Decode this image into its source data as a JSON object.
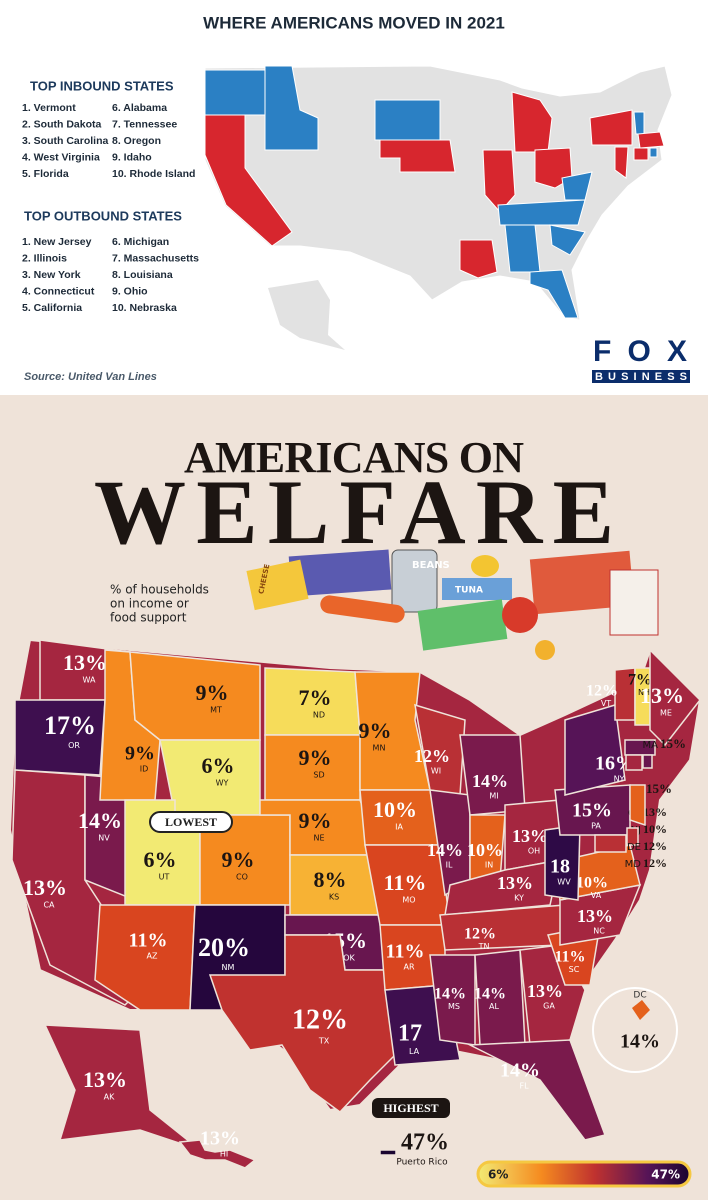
{
  "moves": {
    "title": "WHERE AMERICANS MOVED IN 2021",
    "inbound_title": "TOP INBOUND STATES",
    "inbound": [
      "1. Vermont",
      "2. South Dakota",
      "3. South Carolina",
      "4. West Virginia",
      "5. Florida",
      "6. Alabama",
      "7. Tennessee",
      "8. Oregon",
      "9. Idaho",
      "10. Rhode Island"
    ],
    "outbound_title": "TOP OUTBOUND STATES",
    "outbound": [
      "1. New Jersey",
      "2. Illinois",
      "3. New York",
      "4. Connecticut",
      "5. California",
      "6. Michigan",
      "7. Massachusetts",
      "8. Louisiana",
      "9. Ohio",
      "10. Nebraska"
    ],
    "inbound_color": "#2b80c4",
    "outbound_color": "#d7262e",
    "source": "Source:  United Van Lines",
    "logo_top": "FOX",
    "logo_bottom": "BUSINESS"
  },
  "welfare": {
    "title_top": "AMERICANS ON",
    "title_bottom": "WELFARE",
    "caption": [
      "% of households",
      "on income or",
      "food support"
    ],
    "food_labels": [
      "BEANS",
      "TUNA",
      "CHEESE"
    ],
    "lowest": "LOWEST",
    "highest": "HIGHEST",
    "states": [
      {
        "abbr": "WA",
        "percent": "13%",
        "color": "#a52640"
      },
      {
        "abbr": "OR",
        "percent": "17%",
        "color": "#3e0f4f"
      },
      {
        "abbr": "CA",
        "percent": "13%",
        "color": "#a52640"
      },
      {
        "abbr": "NV",
        "percent": "14%",
        "color": "#7a1a4c"
      },
      {
        "abbr": "ID",
        "percent": "9%",
        "color": "#f58a1f"
      },
      {
        "abbr": "MT",
        "percent": "9%",
        "color": "#f58a1f"
      },
      {
        "abbr": "WY",
        "percent": "6%",
        "color": "#f2ea73"
      },
      {
        "abbr": "UT",
        "percent": "6%",
        "color": "#f2ea73"
      },
      {
        "abbr": "CO",
        "percent": "9%",
        "color": "#f58a1f"
      },
      {
        "abbr": "AZ",
        "percent": "11%",
        "color": "#d9451f"
      },
      {
        "abbr": "NM",
        "percent": "20%",
        "color": "#25063d"
      },
      {
        "abbr": "ND",
        "percent": "7%",
        "color": "#f6dc5a"
      },
      {
        "abbr": "SD",
        "percent": "9%",
        "color": "#f58a1f"
      },
      {
        "abbr": "NE",
        "percent": "9%",
        "color": "#f58a1f"
      },
      {
        "abbr": "KS",
        "percent": "8%",
        "color": "#f7b234"
      },
      {
        "abbr": "OK",
        "percent": "15%",
        "color": "#68164f"
      },
      {
        "abbr": "TX",
        "percent": "12%",
        "color": "#c0322f"
      },
      {
        "abbr": "MN",
        "percent": "9%",
        "color": "#f58a1f"
      },
      {
        "abbr": "IA",
        "percent": "10%",
        "color": "#e4611c"
      },
      {
        "abbr": "MO",
        "percent": "11%",
        "color": "#d9451f"
      },
      {
        "abbr": "AR",
        "percent": "11%",
        "color": "#d9451f"
      },
      {
        "abbr": "LA",
        "percent": "17",
        "color": "#3e0f4f"
      },
      {
        "abbr": "WI",
        "percent": "12%",
        "color": "#b93035"
      },
      {
        "abbr": "IL",
        "percent": "14%",
        "color": "#7a1a4c"
      },
      {
        "abbr": "MI",
        "percent": "14%",
        "color": "#7a1a4c"
      },
      {
        "abbr": "IN",
        "percent": "10%",
        "color": "#e4611c"
      },
      {
        "abbr": "OH",
        "percent": "13%",
        "color": "#a52640"
      },
      {
        "abbr": "KY",
        "percent": "13%",
        "color": "#a52640"
      },
      {
        "abbr": "TN",
        "percent": "12%",
        "color": "#b93035"
      },
      {
        "abbr": "MS",
        "percent": "14%",
        "color": "#7a1a4c"
      },
      {
        "abbr": "AL",
        "percent": "14%",
        "color": "#7a1a4c"
      },
      {
        "abbr": "GA",
        "percent": "13%",
        "color": "#a52640"
      },
      {
        "abbr": "FL",
        "percent": "14%",
        "color": "#7a1a4c"
      },
      {
        "abbr": "SC",
        "percent": "11%",
        "color": "#d9451f"
      },
      {
        "abbr": "NC",
        "percent": "13%",
        "color": "#a52640"
      },
      {
        "abbr": "VA",
        "percent": "10%",
        "color": "#e4611c"
      },
      {
        "abbr": "WV",
        "percent": "18",
        "color": "#2e0a46"
      },
      {
        "abbr": "PA",
        "percent": "15%",
        "color": "#68164f"
      },
      {
        "abbr": "NY",
        "percent": "16%",
        "color": "#561457"
      },
      {
        "abbr": "VT",
        "percent": "12%",
        "color": "#b93035"
      },
      {
        "abbr": "NH",
        "percent": "7%",
        "color": "#f6dc5a"
      },
      {
        "abbr": "ME",
        "percent": "13%",
        "color": "#a52640"
      },
      {
        "abbr": "MA",
        "percent": "15%",
        "color": "#68164f"
      },
      {
        "abbr": "RI",
        "percent": "15%",
        "color": "#68164f"
      },
      {
        "abbr": "CT",
        "percent": "13%",
        "color": "#a52640"
      },
      {
        "abbr": "NJ",
        "percent": "10%",
        "color": "#e4611c"
      },
      {
        "abbr": "DE",
        "percent": "12%",
        "color": "#b93035"
      },
      {
        "abbr": "MD",
        "percent": "12%",
        "color": "#b93035"
      },
      {
        "abbr": "AK",
        "percent": "13%",
        "color": "#a52640"
      },
      {
        "abbr": "HI",
        "percent": "13%",
        "color": "#a52640"
      },
      {
        "abbr": "DC",
        "percent": "14%",
        "color": "#e4611c"
      },
      {
        "abbr": "Puerto Rico",
        "percent": "47%",
        "color": "#1a0530"
      }
    ],
    "legend_low": "6%",
    "legend_high": "47%"
  }
}
